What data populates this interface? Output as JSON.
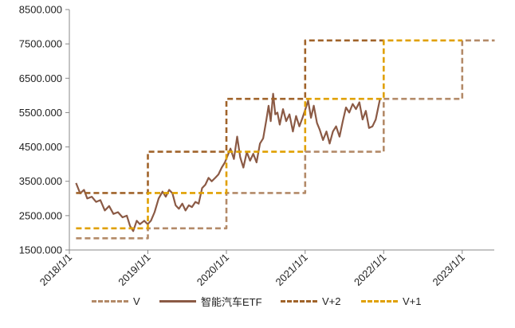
{
  "chart_data": {
    "type": "line",
    "xlabel": "",
    "ylabel": "",
    "ylim": [
      1500,
      8500
    ],
    "yticks": [
      "1500.000",
      "2500.000",
      "3500.000",
      "4500.000",
      "5500.000",
      "6500.000",
      "7500.000",
      "8500.000"
    ],
    "yticks_values": [
      1500,
      2500,
      3500,
      4500,
      5500,
      6500,
      7500,
      8500
    ],
    "xlim": [
      "2018-01-01",
      "2023-06-01"
    ],
    "xticks": [
      "2018/1/1",
      "2019/1/1",
      "2020/1/1",
      "2021/1/1",
      "2022/1/1",
      "2023/1/1"
    ],
    "xticks_values": [
      "2018-01-01",
      "2019-01-01",
      "2020-01-01",
      "2021-01-01",
      "2022-01-01",
      "2023-01-01"
    ],
    "grid": false,
    "legend_position": "bottom",
    "series": [
      {
        "name": "V",
        "color": "#b38a68",
        "style": "dashed",
        "points": [
          [
            "2018-02-01",
            1840
          ],
          [
            "2019-01-01",
            1840
          ],
          [
            "2019-01-01",
            2130
          ],
          [
            "2020-01-01",
            2130
          ],
          [
            "2020-01-01",
            3160
          ],
          [
            "2021-01-01",
            3160
          ],
          [
            "2021-01-01",
            4360
          ],
          [
            "2022-01-01",
            4360
          ],
          [
            "2022-01-01",
            5900
          ],
          [
            "2023-01-01",
            5900
          ],
          [
            "2023-01-01",
            7600
          ],
          [
            "2023-06-01",
            7600
          ]
        ]
      },
      {
        "name": "智能汽车ETF",
        "color": "#8b5a45",
        "style": "solid",
        "points": [
          [
            "2018-02-01",
            3450
          ],
          [
            "2018-02-20",
            3150
          ],
          [
            "2018-03-10",
            3250
          ],
          [
            "2018-03-25",
            3000
          ],
          [
            "2018-04-15",
            3050
          ],
          [
            "2018-05-05",
            2900
          ],
          [
            "2018-05-25",
            2950
          ],
          [
            "2018-06-15",
            2650
          ],
          [
            "2018-07-05",
            2780
          ],
          [
            "2018-07-25",
            2550
          ],
          [
            "2018-08-15",
            2600
          ],
          [
            "2018-09-05",
            2450
          ],
          [
            "2018-09-25",
            2500
          ],
          [
            "2018-10-10",
            2200
          ],
          [
            "2018-10-25",
            2050
          ],
          [
            "2018-11-10",
            2350
          ],
          [
            "2018-11-25",
            2250
          ],
          [
            "2018-12-15",
            2350
          ],
          [
            "2018-12-31",
            2250
          ],
          [
            "2019-01-15",
            2350
          ],
          [
            "2019-02-01",
            2600
          ],
          [
            "2019-02-20",
            3000
          ],
          [
            "2019-03-10",
            3200
          ],
          [
            "2019-03-25",
            3050
          ],
          [
            "2019-04-10",
            3250
          ],
          [
            "2019-04-25",
            3150
          ],
          [
            "2019-05-10",
            2800
          ],
          [
            "2019-05-25",
            2700
          ],
          [
            "2019-06-10",
            2850
          ],
          [
            "2019-06-25",
            2650
          ],
          [
            "2019-07-10",
            2800
          ],
          [
            "2019-07-25",
            2750
          ],
          [
            "2019-08-10",
            2900
          ],
          [
            "2019-08-25",
            2850
          ],
          [
            "2019-09-10",
            3300
          ],
          [
            "2019-09-25",
            3400
          ],
          [
            "2019-10-10",
            3600
          ],
          [
            "2019-10-25",
            3500
          ],
          [
            "2019-11-10",
            3600
          ],
          [
            "2019-11-25",
            3700
          ],
          [
            "2019-12-10",
            3900
          ],
          [
            "2019-12-25",
            4050
          ],
          [
            "2020-01-10",
            4300
          ],
          [
            "2020-01-20",
            4450
          ],
          [
            "2020-02-05",
            4150
          ],
          [
            "2020-02-20",
            4800
          ],
          [
            "2020-03-05",
            4200
          ],
          [
            "2020-03-20",
            3900
          ],
          [
            "2020-04-05",
            4350
          ],
          [
            "2020-04-20",
            4100
          ],
          [
            "2020-05-05",
            4300
          ],
          [
            "2020-05-20",
            4050
          ],
          [
            "2020-06-05",
            4600
          ],
          [
            "2020-06-20",
            4750
          ],
          [
            "2020-07-05",
            5300
          ],
          [
            "2020-07-15",
            5700
          ],
          [
            "2020-07-25",
            5250
          ],
          [
            "2020-08-05",
            6050
          ],
          [
            "2020-08-15",
            5450
          ],
          [
            "2020-08-25",
            5500
          ],
          [
            "2020-09-05",
            5150
          ],
          [
            "2020-09-20",
            5600
          ],
          [
            "2020-10-05",
            5250
          ],
          [
            "2020-10-20",
            5450
          ],
          [
            "2020-11-05",
            4950
          ],
          [
            "2020-11-20",
            5400
          ],
          [
            "2020-12-05",
            5100
          ],
          [
            "2020-12-20",
            5350
          ],
          [
            "2021-01-05",
            5650
          ],
          [
            "2021-01-15",
            5850
          ],
          [
            "2021-01-28",
            5350
          ],
          [
            "2021-02-10",
            5700
          ],
          [
            "2021-02-25",
            5200
          ],
          [
            "2021-03-10",
            5000
          ],
          [
            "2021-03-25",
            4700
          ],
          [
            "2021-04-10",
            4950
          ],
          [
            "2021-04-25",
            4600
          ],
          [
            "2021-05-10",
            4950
          ],
          [
            "2021-05-25",
            5100
          ],
          [
            "2021-06-10",
            4800
          ],
          [
            "2021-06-25",
            5250
          ],
          [
            "2021-07-10",
            5650
          ],
          [
            "2021-07-25",
            5500
          ],
          [
            "2021-08-10",
            5750
          ],
          [
            "2021-08-25",
            5600
          ],
          [
            "2021-09-10",
            5800
          ],
          [
            "2021-09-25",
            5300
          ],
          [
            "2021-10-10",
            5550
          ],
          [
            "2021-10-25",
            5050
          ],
          [
            "2021-11-10",
            5100
          ],
          [
            "2021-11-25",
            5300
          ],
          [
            "2021-12-05",
            5600
          ],
          [
            "2021-12-15",
            5900
          ]
        ]
      },
      {
        "name": "V+2",
        "color": "#a0632a",
        "style": "dashed",
        "points": [
          [
            "2018-02-01",
            3160
          ],
          [
            "2019-01-01",
            3160
          ],
          [
            "2019-01-01",
            4360
          ],
          [
            "2020-01-01",
            4360
          ],
          [
            "2020-01-01",
            5900
          ],
          [
            "2021-01-01",
            5900
          ],
          [
            "2021-01-01",
            7600
          ],
          [
            "2022-01-01",
            7600
          ]
        ]
      },
      {
        "name": "V+1",
        "color": "#e0a000",
        "style": "dashed",
        "points": [
          [
            "2018-02-01",
            2130
          ],
          [
            "2019-01-01",
            2130
          ],
          [
            "2019-01-01",
            3160
          ],
          [
            "2020-01-01",
            3160
          ],
          [
            "2020-01-01",
            4360
          ],
          [
            "2021-01-01",
            4360
          ],
          [
            "2021-01-01",
            5900
          ],
          [
            "2022-01-01",
            5900
          ],
          [
            "2022-01-01",
            7600
          ],
          [
            "2023-01-01",
            7600
          ]
        ]
      }
    ]
  }
}
